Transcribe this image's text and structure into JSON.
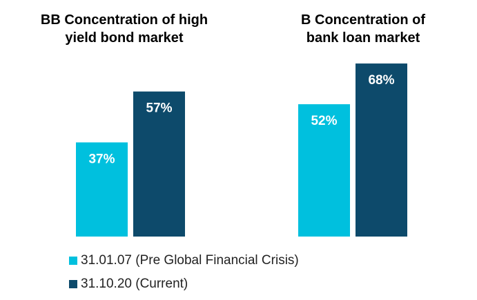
{
  "chart_data": {
    "type": "bar",
    "categories": [
      "BB Concentration of high yield bond market",
      "B Concentration of bank loan market"
    ],
    "series": [
      {
        "name": "31.01.07 (Pre Global Financial Crisis)",
        "color": "#00c0de",
        "values": [
          37,
          52
        ],
        "value_labels": [
          "37%",
          "52%"
        ]
      },
      {
        "name": "31.10.20 (Current)",
        "color": "#0d4a6b",
        "values": [
          57,
          68
        ],
        "value_labels": [
          "57%",
          "68%"
        ]
      }
    ]
  }
}
